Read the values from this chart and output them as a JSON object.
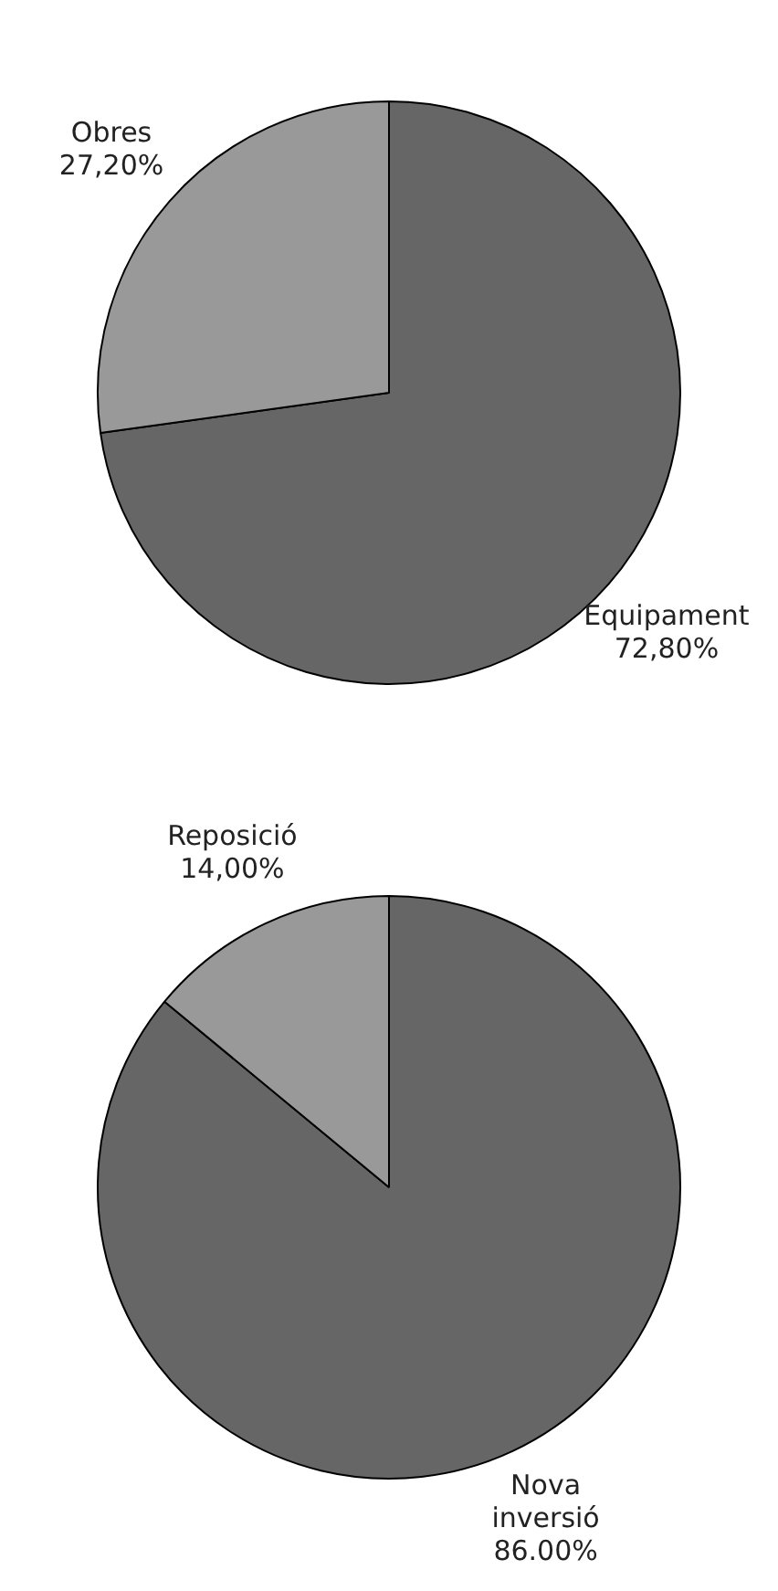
{
  "chart_data": [
    {
      "type": "pie",
      "categories": [
        "Equipament",
        "Obres"
      ],
      "values": [
        72.8,
        27.2
      ],
      "colors": [
        "#666666",
        "#999999"
      ],
      "value_labels": [
        "72,80%",
        "27,20%"
      ]
    },
    {
      "type": "pie",
      "categories": [
        "Nova inversió",
        "Reposició"
      ],
      "values": [
        86,
        14
      ],
      "colors": [
        "#666666",
        "#999999"
      ],
      "value_labels": [
        "86.00%",
        "14,00%"
      ]
    }
  ]
}
